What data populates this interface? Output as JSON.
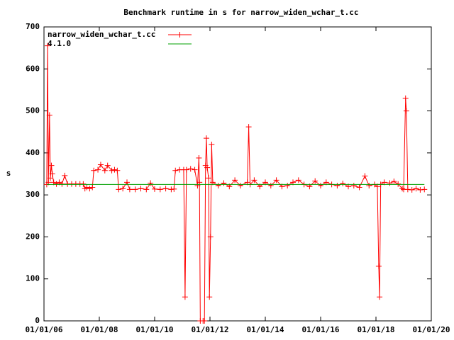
{
  "chart_data": {
    "type": "line",
    "title": "Benchmark runtime in s for narrow_widen_wchar_t.cc",
    "y_label": "s",
    "xlim": [
      2006,
      2020
    ],
    "xticks": [
      {
        "value": 2006,
        "label": "01/01/06"
      },
      {
        "value": 2008,
        "label": "01/01/08"
      },
      {
        "value": 2010,
        "label": "01/01/10"
      },
      {
        "value": 2012,
        "label": "01/01/12"
      },
      {
        "value": 2014,
        "label": "01/01/14"
      },
      {
        "value": 2016,
        "label": "01/01/16"
      },
      {
        "value": 2018,
        "label": "01/01/18"
      },
      {
        "value": 2020,
        "label": "01/01/20"
      }
    ],
    "ylim": [
      0,
      700
    ],
    "yticks": [
      0,
      100,
      200,
      300,
      400,
      500,
      600,
      700
    ],
    "legend": "top-left",
    "series": [
      {
        "name": "narrow_widen_wchar_t.cc",
        "color": "#ff0000",
        "markers": true,
        "x": [
          2006.1,
          2006.13,
          2006.16,
          2006.2,
          2006.23,
          2006.27,
          2006.3,
          2006.35,
          2006.45,
          2006.55,
          2006.65,
          2006.75,
          2006.85,
          2007.0,
          2007.15,
          2007.3,
          2007.42,
          2007.48,
          2007.55,
          2007.65,
          2007.75,
          2007.8,
          2007.95,
          2008.05,
          2008.2,
          2008.3,
          2008.45,
          2008.55,
          2008.65,
          2008.7,
          2008.85,
          2009.0,
          2009.1,
          2009.3,
          2009.5,
          2009.7,
          2009.85,
          2010.0,
          2010.2,
          2010.4,
          2010.6,
          2010.7,
          2010.75,
          2010.9,
          2011.05,
          2011.1,
          2011.15,
          2011.3,
          2011.45,
          2011.55,
          2011.6,
          2011.62,
          2011.65,
          2011.75,
          2011.8,
          2011.84,
          2011.87,
          2011.9,
          2011.95,
          2011.98,
          2012.02,
          2012.06,
          2012.1,
          2012.3,
          2012.5,
          2012.7,
          2012.9,
          2013.1,
          2013.35,
          2013.4,
          2013.45,
          2013.6,
          2013.8,
          2014.0,
          2014.2,
          2014.4,
          2014.6,
          2014.8,
          2015.0,
          2015.2,
          2015.4,
          2015.6,
          2015.8,
          2016.0,
          2016.2,
          2016.4,
          2016.6,
          2016.8,
          2017.0,
          2017.2,
          2017.4,
          2017.6,
          2017.75,
          2017.95,
          2018.05,
          2018.1,
          2018.13,
          2018.17,
          2018.3,
          2018.5,
          2018.65,
          2018.8,
          2018.95,
          2019.0,
          2019.07,
          2019.1,
          2019.15,
          2019.3,
          2019.45,
          2019.6,
          2019.75
        ],
        "values": [
          325,
          655,
          330,
          490,
          340,
          370,
          350,
          330,
          326,
          330,
          326,
          346,
          326,
          326,
          326,
          326,
          326,
          315,
          318,
          315,
          318,
          358,
          360,
          372,
          358,
          370,
          358,
          360,
          358,
          313,
          315,
          330,
          313,
          313,
          315,
          313,
          328,
          314,
          313,
          315,
          313,
          314,
          358,
          360,
          360,
          57,
          360,
          362,
          360,
          322,
          388,
          330,
          0,
          0,
          0,
          370,
          435,
          365,
          340,
          57,
          200,
          420,
          330,
          322,
          328,
          320,
          335,
          322,
          330,
          462,
          325,
          335,
          320,
          330,
          322,
          335,
          320,
          322,
          330,
          335,
          325,
          320,
          333,
          322,
          330,
          325,
          322,
          327,
          320,
          322,
          318,
          345,
          322,
          325,
          320,
          130,
          57,
          325,
          330,
          328,
          332,
          326,
          315,
          313,
          530,
          500,
          313,
          312,
          315,
          312,
          313
        ]
      },
      {
        "name": "4.1.0",
        "color": "#00a000",
        "markers": false,
        "x": [
          2006.1,
          2019.75
        ],
        "values": [
          325,
          325
        ]
      }
    ]
  }
}
